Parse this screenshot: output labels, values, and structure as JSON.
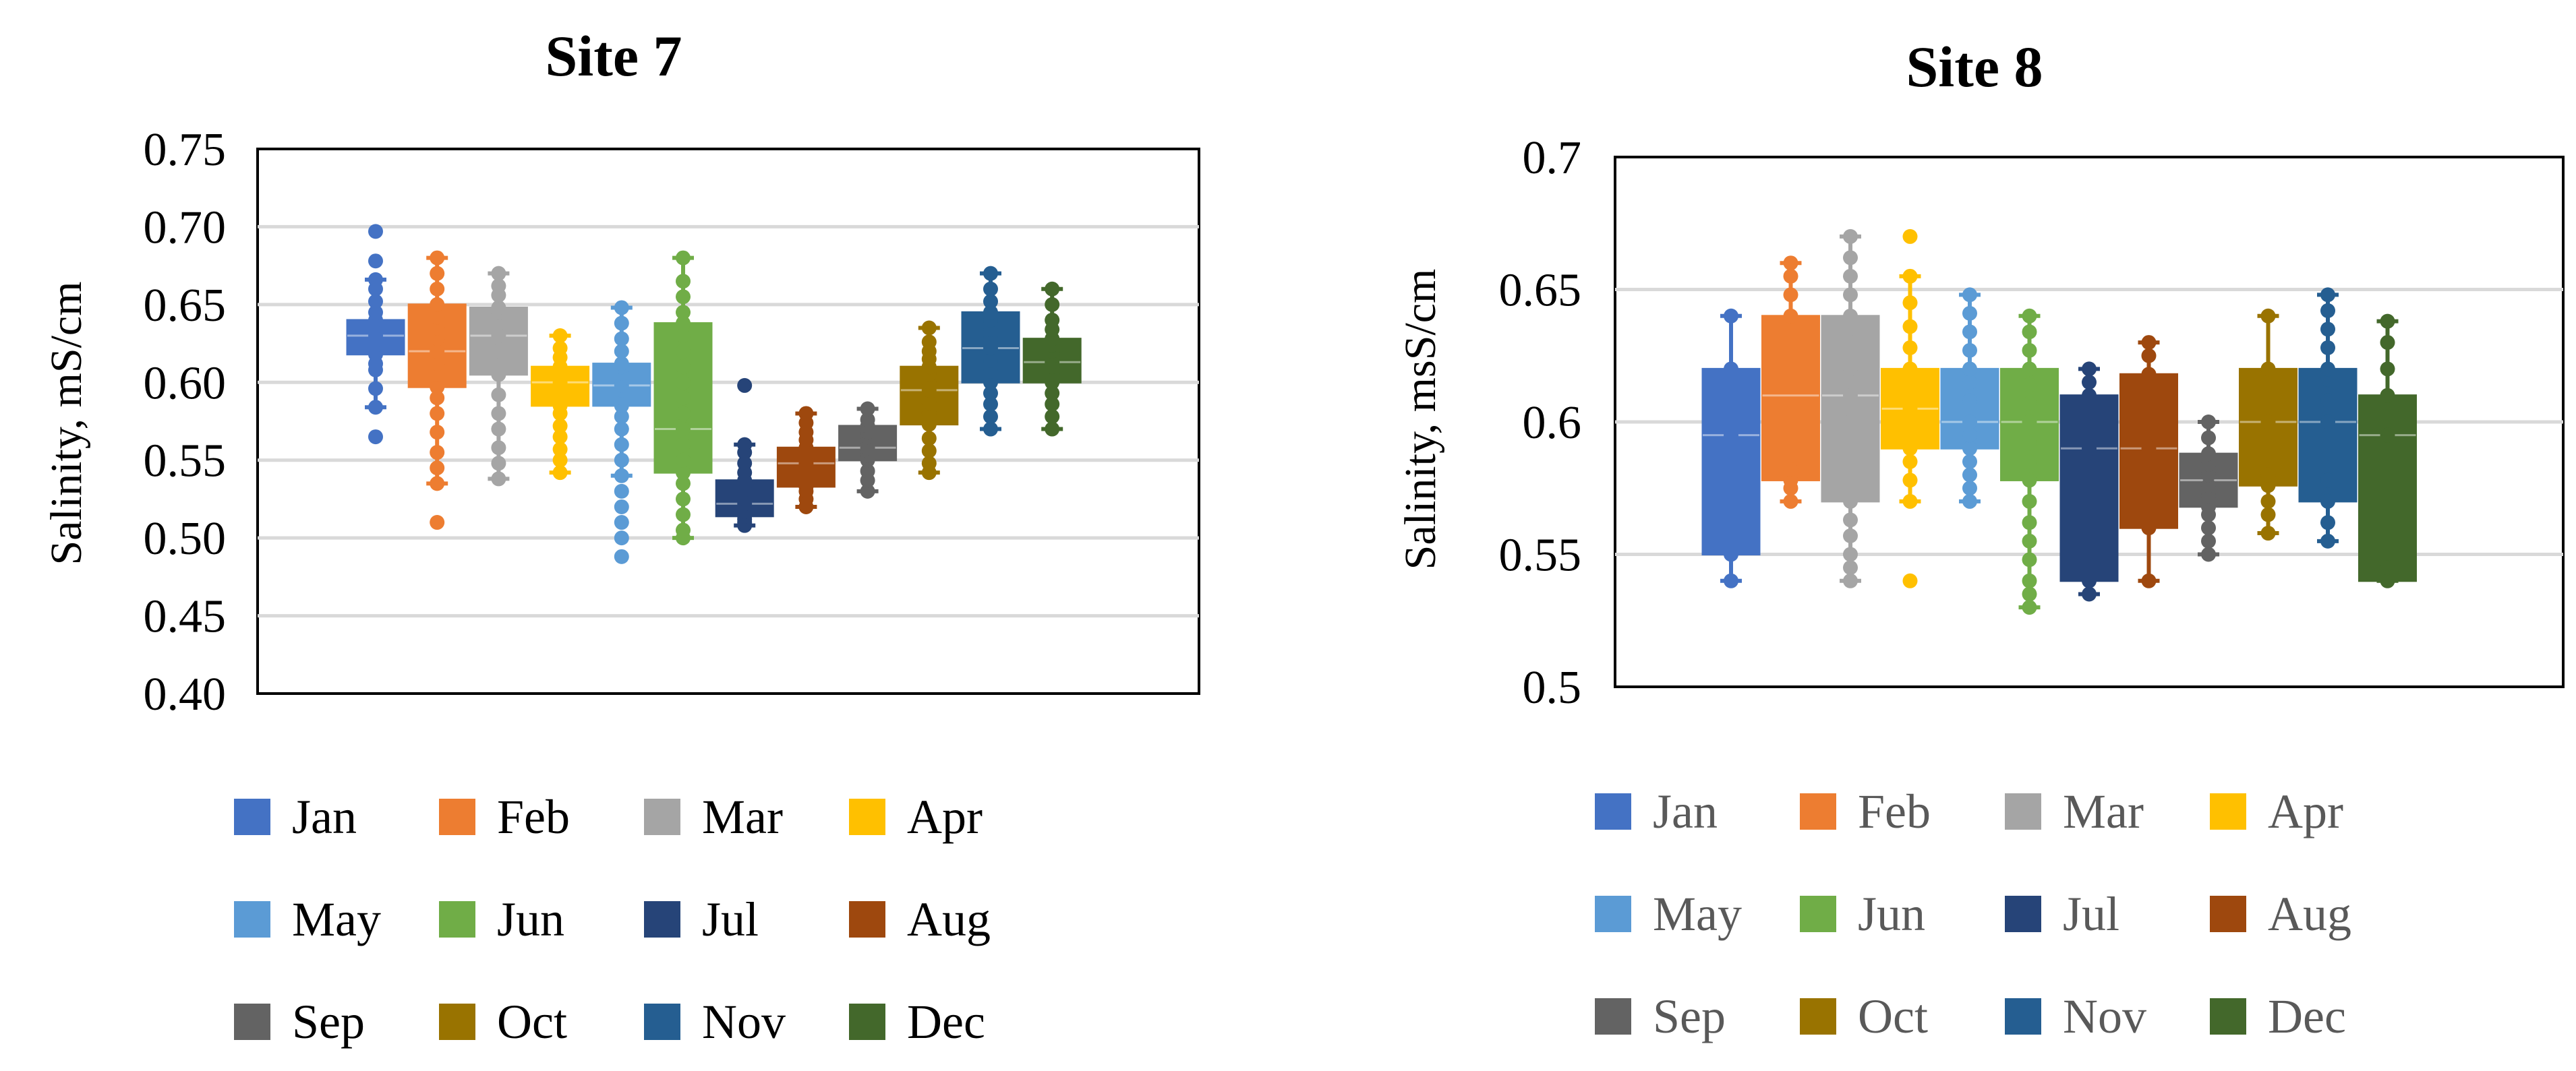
{
  "chart_data": [
    {
      "type": "box",
      "title": "Site 7",
      "xlabel": "",
      "ylabel": "Salinity, mS/cm",
      "ylim": [
        0.4,
        0.75
      ],
      "ticks": [
        "0.40",
        "0.45",
        "0.50",
        "0.55",
        "0.60",
        "0.65",
        "0.70",
        "0.75"
      ],
      "grid": true,
      "legend_position": "bottom",
      "series": [
        {
          "name": "Jan",
          "color": "#4472C4",
          "min": 0.584,
          "q1": 0.618,
          "median": 0.63,
          "q3": 0.64,
          "max": 0.666,
          "points": [
            0.565,
            0.584,
            0.596,
            0.608,
            0.612,
            0.618,
            0.621,
            0.624,
            0.627,
            0.63,
            0.633,
            0.636,
            0.64,
            0.645,
            0.652,
            0.66,
            0.666,
            0.678,
            0.697
          ]
        },
        {
          "name": "Feb",
          "color": "#ED7D31",
          "min": 0.535,
          "q1": 0.597,
          "median": 0.62,
          "q3": 0.65,
          "max": 0.68,
          "points": [
            0.51,
            0.535,
            0.545,
            0.555,
            0.568,
            0.58,
            0.59,
            0.597,
            0.605,
            0.612,
            0.62,
            0.628,
            0.635,
            0.642,
            0.65,
            0.66,
            0.67,
            0.68
          ]
        },
        {
          "name": "Mar",
          "color": "#A5A5A5",
          "min": 0.538,
          "q1": 0.605,
          "median": 0.63,
          "q3": 0.648,
          "max": 0.67,
          "points": [
            0.538,
            0.548,
            0.558,
            0.57,
            0.58,
            0.592,
            0.605,
            0.612,
            0.62,
            0.63,
            0.638,
            0.645,
            0.648,
            0.656,
            0.662,
            0.67
          ]
        },
        {
          "name": "Apr",
          "color": "#FFC000",
          "min": 0.542,
          "q1": 0.585,
          "median": 0.6,
          "q3": 0.61,
          "max": 0.63,
          "points": [
            0.542,
            0.55,
            0.557,
            0.565,
            0.572,
            0.58,
            0.585,
            0.59,
            0.595,
            0.6,
            0.604,
            0.608,
            0.61,
            0.616,
            0.622,
            0.63
          ]
        },
        {
          "name": "May",
          "color": "#5B9BD5",
          "min": 0.54,
          "q1": 0.585,
          "median": 0.598,
          "q3": 0.612,
          "max": 0.648,
          "points": [
            0.488,
            0.5,
            0.51,
            0.52,
            0.53,
            0.54,
            0.55,
            0.56,
            0.57,
            0.578,
            0.585,
            0.59,
            0.595,
            0.598,
            0.602,
            0.606,
            0.61,
            0.612,
            0.62,
            0.628,
            0.638,
            0.648
          ]
        },
        {
          "name": "Jun",
          "color": "#70AD47",
          "min": 0.5,
          "q1": 0.542,
          "median": 0.57,
          "q3": 0.638,
          "max": 0.68,
          "points": [
            0.5,
            0.505,
            0.515,
            0.525,
            0.535,
            0.542,
            0.55,
            0.56,
            0.57,
            0.58,
            0.59,
            0.6,
            0.61,
            0.62,
            0.63,
            0.638,
            0.645,
            0.655,
            0.665,
            0.68
          ]
        },
        {
          "name": "Jul",
          "color": "#264478",
          "min": 0.508,
          "q1": 0.514,
          "median": 0.522,
          "q3": 0.537,
          "max": 0.56,
          "points": [
            0.508,
            0.51,
            0.512,
            0.514,
            0.517,
            0.52,
            0.522,
            0.525,
            0.528,
            0.531,
            0.534,
            0.537,
            0.542,
            0.548,
            0.555,
            0.56,
            0.598
          ]
        },
        {
          "name": "Aug",
          "color": "#9E480E",
          "min": 0.52,
          "q1": 0.533,
          "median": 0.548,
          "q3": 0.558,
          "max": 0.58,
          "points": [
            0.52,
            0.525,
            0.53,
            0.533,
            0.537,
            0.541,
            0.545,
            0.548,
            0.551,
            0.554,
            0.558,
            0.563,
            0.568,
            0.574,
            0.58
          ]
        },
        {
          "name": "Sep",
          "color": "#636363",
          "min": 0.53,
          "q1": 0.55,
          "median": 0.558,
          "q3": 0.572,
          "max": 0.583,
          "points": [
            0.53,
            0.537,
            0.543,
            0.55,
            0.553,
            0.556,
            0.558,
            0.561,
            0.565,
            0.568,
            0.572,
            0.576,
            0.583
          ]
        },
        {
          "name": "Oct",
          "color": "#997300",
          "min": 0.542,
          "q1": 0.573,
          "median": 0.595,
          "q3": 0.61,
          "max": 0.635,
          "points": [
            0.542,
            0.548,
            0.556,
            0.564,
            0.573,
            0.58,
            0.587,
            0.595,
            0.6,
            0.605,
            0.61,
            0.615,
            0.62,
            0.626,
            0.635
          ]
        },
        {
          "name": "Nov",
          "color": "#255E91",
          "min": 0.57,
          "q1": 0.6,
          "median": 0.622,
          "q3": 0.645,
          "max": 0.67,
          "points": [
            0.57,
            0.578,
            0.586,
            0.593,
            0.6,
            0.607,
            0.614,
            0.622,
            0.628,
            0.634,
            0.64,
            0.645,
            0.652,
            0.66,
            0.67
          ]
        },
        {
          "name": "Dec",
          "color": "#43682B",
          "min": 0.57,
          "q1": 0.6,
          "median": 0.613,
          "q3": 0.628,
          "max": 0.66,
          "points": [
            0.57,
            0.578,
            0.586,
            0.593,
            0.6,
            0.605,
            0.61,
            0.613,
            0.617,
            0.62,
            0.624,
            0.628,
            0.634,
            0.64,
            0.65,
            0.66
          ]
        }
      ]
    },
    {
      "type": "box",
      "title": "Site 8",
      "xlabel": "",
      "ylabel": "Salinity, msS/cm",
      "ylim": [
        0.5,
        0.7
      ],
      "ticks": [
        "0.5",
        "0.55",
        "0.6",
        "0.65",
        "0.7"
      ],
      "grid": true,
      "legend_position": "bottom",
      "series": [
        {
          "name": "Jan",
          "color": "#4472C4",
          "min": 0.54,
          "q1": 0.55,
          "median": 0.595,
          "q3": 0.62,
          "max": 0.64,
          "points": [
            0.54,
            0.55,
            0.595,
            0.62,
            0.64
          ]
        },
        {
          "name": "Feb",
          "color": "#ED7D31",
          "min": 0.57,
          "q1": 0.578,
          "median": 0.61,
          "q3": 0.64,
          "max": 0.66,
          "points": [
            0.57,
            0.575,
            0.578,
            0.582,
            0.64,
            0.648,
            0.655,
            0.66
          ]
        },
        {
          "name": "Mar",
          "color": "#A5A5A5",
          "min": 0.54,
          "q1": 0.57,
          "median": 0.61,
          "q3": 0.64,
          "max": 0.67,
          "points": [
            0.54,
            0.545,
            0.55,
            0.557,
            0.563,
            0.57,
            0.585,
            0.6,
            0.61,
            0.62,
            0.63,
            0.64,
            0.648,
            0.655,
            0.662,
            0.67
          ]
        },
        {
          "name": "Apr",
          "color": "#FFC000",
          "min": 0.57,
          "q1": 0.59,
          "median": 0.605,
          "q3": 0.62,
          "max": 0.655,
          "points": [
            0.54,
            0.57,
            0.578,
            0.585,
            0.59,
            0.597,
            0.605,
            0.612,
            0.62,
            0.628,
            0.636,
            0.645,
            0.655,
            0.67
          ]
        },
        {
          "name": "May",
          "color": "#5B9BD5",
          "min": 0.57,
          "q1": 0.59,
          "median": 0.6,
          "q3": 0.62,
          "max": 0.648,
          "points": [
            0.57,
            0.575,
            0.58,
            0.585,
            0.59,
            0.595,
            0.6,
            0.608,
            0.615,
            0.62,
            0.627,
            0.634,
            0.641,
            0.648
          ]
        },
        {
          "name": "Jun",
          "color": "#70AD47",
          "min": 0.53,
          "q1": 0.578,
          "median": 0.6,
          "q3": 0.62,
          "max": 0.64,
          "points": [
            0.53,
            0.535,
            0.54,
            0.548,
            0.555,
            0.562,
            0.57,
            0.578,
            0.585,
            0.592,
            0.6,
            0.607,
            0.614,
            0.62,
            0.627,
            0.634,
            0.64
          ]
        },
        {
          "name": "Jul",
          "color": "#264478",
          "min": 0.535,
          "q1": 0.54,
          "median": 0.59,
          "q3": 0.61,
          "max": 0.62,
          "points": [
            0.535,
            0.54,
            0.59,
            0.61,
            0.615,
            0.62
          ]
        },
        {
          "name": "Aug",
          "color": "#9E480E",
          "min": 0.54,
          "q1": 0.56,
          "median": 0.59,
          "q3": 0.618,
          "max": 0.63,
          "points": [
            0.54,
            0.56,
            0.59,
            0.618,
            0.625,
            0.63
          ]
        },
        {
          "name": "Sep",
          "color": "#636363",
          "min": 0.55,
          "q1": 0.568,
          "median": 0.578,
          "q3": 0.588,
          "max": 0.6,
          "points": [
            0.55,
            0.555,
            0.56,
            0.565,
            0.568,
            0.572,
            0.576,
            0.58,
            0.584,
            0.588,
            0.594,
            0.6
          ]
        },
        {
          "name": "Oct",
          "color": "#997300",
          "min": 0.558,
          "q1": 0.576,
          "median": 0.6,
          "q3": 0.62,
          "max": 0.64,
          "points": [
            0.558,
            0.565,
            0.57,
            0.576,
            0.58,
            0.6,
            0.62,
            0.64
          ]
        },
        {
          "name": "Nov",
          "color": "#255E91",
          "min": 0.555,
          "q1": 0.57,
          "median": 0.6,
          "q3": 0.62,
          "max": 0.648,
          "points": [
            0.555,
            0.562,
            0.57,
            0.578,
            0.6,
            0.608,
            0.616,
            0.62,
            0.628,
            0.635,
            0.642,
            0.648
          ]
        },
        {
          "name": "Dec",
          "color": "#43682B",
          "min": 0.54,
          "q1": 0.54,
          "median": 0.595,
          "q3": 0.61,
          "max": 0.638,
          "points": [
            0.54,
            0.545,
            0.595,
            0.61,
            0.62,
            0.63,
            0.638
          ]
        }
      ]
    }
  ]
}
